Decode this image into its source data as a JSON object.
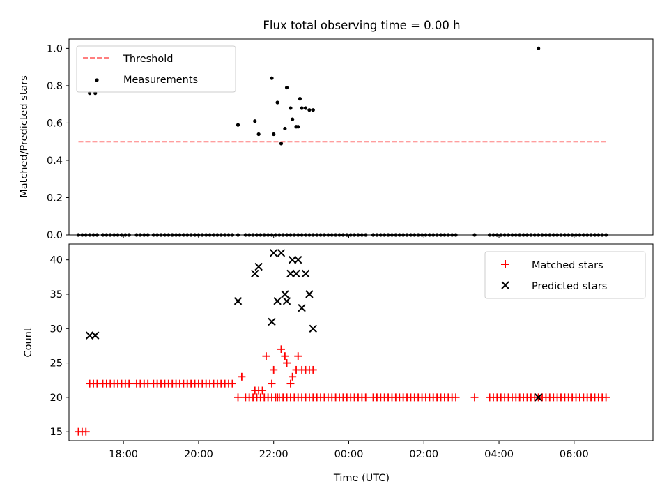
{
  "chart_data": [
    {
      "type": "scatter",
      "title": "Flux total observing time = 0.00 h",
      "xlabel": "",
      "ylabel": "Matched/Predicted stars",
      "xlim": [
        16.55,
        32.1
      ],
      "ylim": [
        0,
        1.05
      ],
      "yticks": [
        "0.0",
        "0.2",
        "0.4",
        "0.6",
        "0.8",
        "1.0"
      ],
      "ytick_values": [
        0,
        0.2,
        0.4,
        0.6,
        0.8,
        1.0
      ],
      "legend": {
        "position": "upper left",
        "threshold_label": "Threshold",
        "measurements_label": "Measurements"
      },
      "colors": {
        "threshold": "#ff7f7f",
        "measurements": "#000000"
      },
      "threshold": {
        "x": [
          16.8,
          30.9
        ],
        "y": 0.5
      },
      "measurements": {
        "x": [
          16.8,
          16.9,
          17.0,
          17.1,
          17.2,
          17.3,
          17.45,
          17.55,
          17.65,
          17.75,
          17.85,
          17.95,
          18.05,
          18.15,
          18.35,
          18.45,
          18.55,
          18.65,
          18.8,
          18.9,
          19.0,
          19.1,
          19.2,
          19.3,
          19.4,
          19.5,
          19.6,
          19.7,
          19.8,
          19.9,
          20.0,
          20.1,
          20.2,
          20.3,
          20.4,
          20.5,
          20.6,
          20.7,
          20.8,
          20.9,
          21.05,
          21.25,
          21.35,
          21.45,
          21.55,
          21.65,
          21.75,
          21.85,
          21.95,
          22.05,
          22.15,
          22.25,
          22.35,
          22.45,
          22.55,
          22.65,
          22.75,
          22.85,
          22.95,
          23.05,
          23.15,
          23.25,
          23.35,
          23.45,
          23.55,
          23.65,
          23.75,
          23.85,
          23.95,
          24.05,
          24.15,
          24.25,
          24.35,
          24.45,
          24.65,
          24.75,
          24.85,
          24.95,
          25.05,
          25.15,
          25.25,
          25.35,
          25.45,
          25.55,
          25.65,
          25.75,
          25.85,
          25.95,
          26.05,
          26.15,
          26.25,
          26.35,
          26.45,
          26.55,
          26.65,
          26.75,
          26.85,
          27.35,
          27.75,
          27.85,
          27.95,
          28.05,
          28.15,
          28.25,
          28.35,
          28.45,
          28.55,
          28.65,
          28.75,
          28.85,
          28.95,
          29.05,
          29.15,
          29.25,
          29.35,
          29.45,
          29.55,
          29.65,
          29.75,
          29.85,
          29.95,
          30.05,
          30.15,
          30.25,
          30.35,
          30.45,
          30.55,
          30.65,
          30.75,
          30.85,
          17.1,
          17.25,
          21.05,
          21.5,
          21.6,
          21.95,
          22.0,
          22.1,
          22.2,
          22.3,
          22.35,
          22.45,
          22.5,
          22.6,
          22.65,
          22.7,
          22.75,
          22.85,
          22.95,
          23.05,
          29.05
        ],
        "y": [
          0,
          0,
          0,
          0,
          0,
          0,
          0,
          0,
          0,
          0,
          0,
          0,
          0,
          0,
          0,
          0,
          0,
          0,
          0,
          0,
          0,
          0,
          0,
          0,
          0,
          0,
          0,
          0,
          0,
          0,
          0,
          0,
          0,
          0,
          0,
          0,
          0,
          0,
          0,
          0,
          0,
          0,
          0,
          0,
          0,
          0,
          0,
          0,
          0,
          0,
          0,
          0,
          0,
          0,
          0,
          0,
          0,
          0,
          0,
          0,
          0,
          0,
          0,
          0,
          0,
          0,
          0,
          0,
          0,
          0,
          0,
          0,
          0,
          0,
          0,
          0,
          0,
          0,
          0,
          0,
          0,
          0,
          0,
          0,
          0,
          0,
          0,
          0,
          0,
          0,
          0,
          0,
          0,
          0,
          0,
          0,
          0,
          0,
          0,
          0,
          0,
          0,
          0,
          0,
          0,
          0,
          0,
          0,
          0,
          0,
          0,
          0,
          0,
          0,
          0,
          0,
          0,
          0,
          0,
          0,
          0,
          0,
          0,
          0,
          0,
          0,
          0,
          0,
          0,
          0,
          0.76,
          0.76,
          0.59,
          0.61,
          0.54,
          0.84,
          0.54,
          0.71,
          0.49,
          0.57,
          0.79,
          0.68,
          0.62,
          0.58,
          0.58,
          0.73,
          0.68,
          0.68,
          0.67,
          0.67,
          1.0
        ]
      }
    },
    {
      "type": "scatter",
      "title": "",
      "xlabel": "Time (UTC)",
      "ylabel": "Count",
      "xlim": [
        16.55,
        32.1
      ],
      "ylim": [
        13.7,
        42.3
      ],
      "yticks": [
        "15",
        "20",
        "25",
        "30",
        "35",
        "40"
      ],
      "ytick_values": [
        15,
        20,
        25,
        30,
        35,
        40
      ],
      "xticks": [
        "18:00",
        "20:00",
        "22:00",
        "00:00",
        "02:00",
        "04:00",
        "06:00"
      ],
      "xtick_values": [
        18,
        20,
        22,
        24,
        26,
        28,
        30
      ],
      "legend": {
        "position": "upper right",
        "matched_label": "Matched stars",
        "predicted_label": "Predicted stars"
      },
      "colors": {
        "matched": "#ff0000",
        "predicted": "#000000"
      },
      "matched": {
        "x": [
          16.8,
          16.9,
          17.0,
          17.1,
          17.2,
          17.3,
          17.45,
          17.55,
          17.65,
          17.75,
          17.85,
          17.95,
          18.05,
          18.15,
          18.35,
          18.45,
          18.55,
          18.65,
          18.8,
          18.9,
          19.0,
          19.1,
          19.2,
          19.3,
          19.4,
          19.5,
          19.6,
          19.7,
          19.8,
          19.9,
          20.0,
          20.1,
          20.2,
          20.3,
          20.4,
          20.5,
          20.6,
          20.7,
          20.8,
          20.9,
          21.05,
          21.25,
          21.35,
          21.45,
          21.55,
          21.65,
          21.75,
          21.85,
          21.95,
          22.05,
          22.15,
          22.25,
          22.35,
          22.45,
          22.55,
          22.65,
          22.75,
          22.85,
          22.95,
          23.05,
          23.15,
          23.25,
          23.35,
          23.45,
          23.55,
          23.65,
          23.75,
          23.85,
          23.95,
          24.05,
          24.15,
          24.25,
          24.35,
          24.45,
          24.65,
          24.75,
          24.85,
          24.95,
          25.05,
          25.15,
          25.25,
          25.35,
          25.45,
          25.55,
          25.65,
          25.75,
          25.85,
          25.95,
          26.05,
          26.15,
          26.25,
          26.35,
          26.45,
          26.55,
          26.65,
          26.75,
          26.85,
          27.35,
          27.75,
          27.85,
          27.95,
          28.05,
          28.15,
          28.25,
          28.35,
          28.45,
          28.55,
          28.65,
          28.75,
          28.85,
          28.95,
          29.05,
          29.15,
          29.25,
          29.35,
          29.45,
          29.55,
          29.65,
          29.75,
          29.85,
          29.95,
          30.05,
          30.15,
          30.25,
          30.35,
          30.45,
          30.55,
          30.65,
          30.75,
          30.85,
          21.15,
          21.5,
          21.6,
          21.7,
          21.8,
          21.95,
          22.0,
          22.1,
          22.2,
          22.3,
          22.35,
          22.45,
          22.5,
          22.6,
          22.65,
          22.75,
          22.85,
          22.95,
          23.05
        ],
        "y": [
          15,
          15,
          15,
          22,
          22,
          22,
          22,
          22,
          22,
          22,
          22,
          22,
          22,
          22,
          22,
          22,
          22,
          22,
          22,
          22,
          22,
          22,
          22,
          22,
          22,
          22,
          22,
          22,
          22,
          22,
          22,
          22,
          22,
          22,
          22,
          22,
          22,
          22,
          22,
          22,
          20,
          20,
          20,
          20,
          20,
          20,
          20,
          20,
          20,
          20,
          20,
          20,
          20,
          20,
          20,
          20,
          20,
          20,
          20,
          20,
          20,
          20,
          20,
          20,
          20,
          20,
          20,
          20,
          20,
          20,
          20,
          20,
          20,
          20,
          20,
          20,
          20,
          20,
          20,
          20,
          20,
          20,
          20,
          20,
          20,
          20,
          20,
          20,
          20,
          20,
          20,
          20,
          20,
          20,
          20,
          20,
          20,
          20,
          20,
          20,
          20,
          20,
          20,
          20,
          20,
          20,
          20,
          20,
          20,
          20,
          20,
          20,
          20,
          20,
          20,
          20,
          20,
          20,
          20,
          20,
          20,
          20,
          20,
          20,
          20,
          20,
          20,
          20,
          20,
          20,
          23,
          21,
          21,
          21,
          26,
          22,
          24,
          20,
          27,
          26,
          25,
          22,
          23,
          24,
          26,
          24,
          24,
          24,
          24
        ]
      },
      "predicted": {
        "x": [
          17.1,
          17.25,
          21.05,
          21.5,
          21.6,
          21.95,
          22.0,
          22.1,
          22.2,
          22.3,
          22.35,
          22.45,
          22.5,
          22.6,
          22.65,
          22.75,
          22.85,
          22.95,
          23.05,
          29.05
        ],
        "y": [
          29,
          29,
          34,
          38,
          39,
          31,
          41,
          34,
          41,
          35,
          34,
          38,
          40,
          38,
          40,
          33,
          38,
          35,
          30,
          20
        ]
      }
    }
  ]
}
